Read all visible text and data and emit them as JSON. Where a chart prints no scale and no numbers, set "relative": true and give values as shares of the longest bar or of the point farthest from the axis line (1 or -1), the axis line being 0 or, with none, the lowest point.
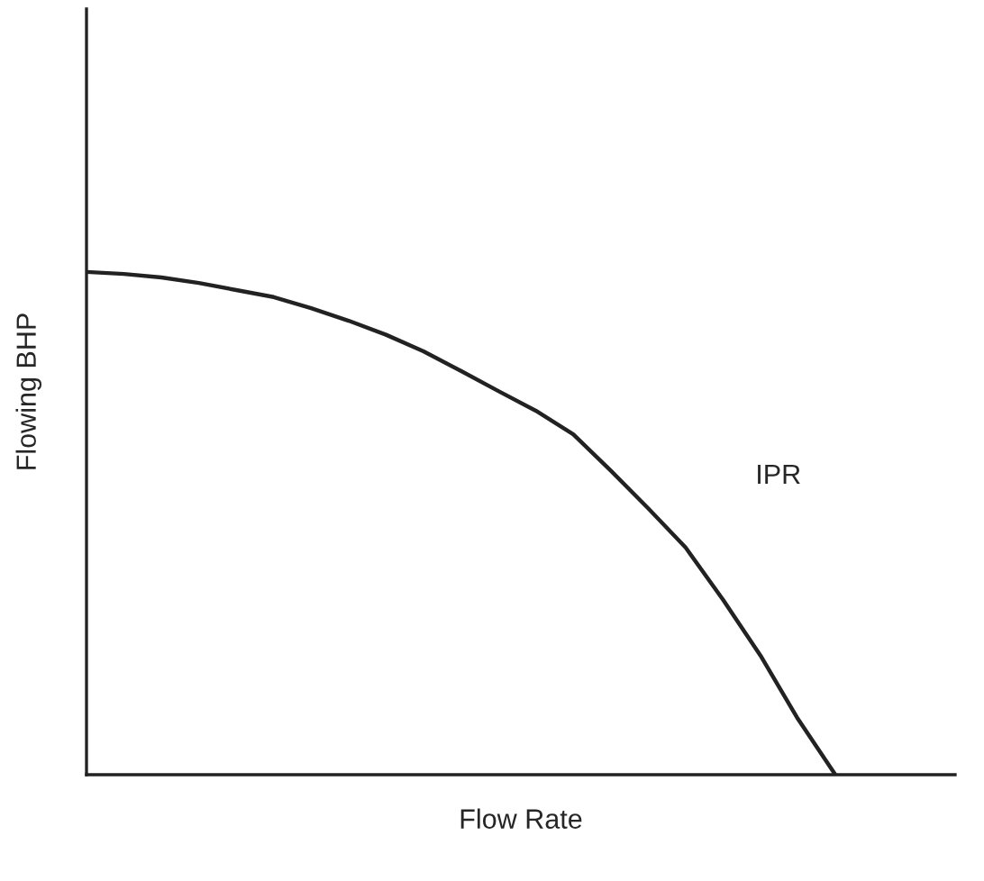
{
  "chart_data": {
    "type": "line",
    "relative": true,
    "xlabel": "Flow Rate",
    "ylabel": "Flowing BHP",
    "annotations": [
      "IPR"
    ],
    "grid": false,
    "legend": false,
    "categories": [
      null,
      null,
      null,
      null,
      null,
      null,
      null,
      null,
      null,
      null,
      null,
      null,
      null,
      null,
      null,
      null,
      null,
      null,
      null,
      null,
      null,
      null,
      null,
      null
    ],
    "series": [
      {
        "color": "#222222",
        "values": [
          1,
          0.996,
          0.989,
          0.978,
          0.964,
          0.95,
          0.928,
          0.903,
          0.875,
          0.842,
          0.803,
          0.763,
          0.724,
          0.677,
          0.605,
          0.53,
          0.452,
          0.348,
          0.237,
          0.111,
          0,
          null,
          null,
          null
        ]
      }
    ]
  }
}
